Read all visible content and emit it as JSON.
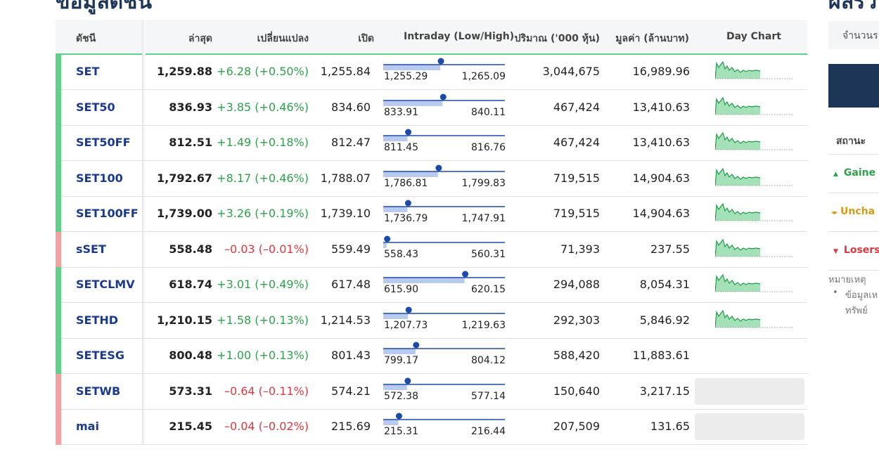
{
  "left_title": "ข้อมูลดัชนี",
  "right_title": "ผลรว",
  "table": {
    "headers": [
      "ดัชนี",
      "ล่าสุด",
      "เปลี่ยนแปลง",
      "เปิด",
      "Intraday (Low/High)",
      "ปริมาณ ('000 หุ้น)",
      "มูลค่า (ล้านบาท)",
      "Day Chart"
    ],
    "rows": [
      {
        "name": "SET",
        "last": "1,259.88",
        "change": "+6.28 (+0.50%)",
        "open": "1,255.84",
        "low": "1,255.29",
        "high": "1,265.09",
        "volume": "3,044,675",
        "value": "16,989.96",
        "color": "#2ea24a",
        "stripe_color": "#5fd08a",
        "day_chart": "sparkline"
      },
      {
        "name": "SET50",
        "last": "836.93",
        "change": "+3.85 (+0.46%)",
        "open": "834.60",
        "low": "833.91",
        "high": "840.11",
        "volume": "467,424",
        "value": "13,410.63",
        "color": "#2ea24a",
        "stripe_color": "#5fd08a",
        "day_chart": "sparkline"
      },
      {
        "name": "SET50FF",
        "last": "812.51",
        "change": "+1.49 (+0.18%)",
        "open": "812.47",
        "low": "811.45",
        "high": "816.76",
        "volume": "467,424",
        "value": "13,410.63",
        "color": "#2ea24a",
        "stripe_color": "#5fd08a",
        "day_chart": "sparkline"
      },
      {
        "name": "SET100",
        "last": "1,792.67",
        "change": "+8.17 (+0.46%)",
        "open": "1,788.07",
        "low": "1,786.81",
        "high": "1,799.83",
        "volume": "719,515",
        "value": "14,904.63",
        "color": "#2ea24a",
        "stripe_color": "#5fd08a",
        "day_chart": "sparkline"
      },
      {
        "name": "SET100FF",
        "last": "1,739.00",
        "change": "+3.26 (+0.19%)",
        "open": "1,739.10",
        "low": "1,736.79",
        "high": "1,747.91",
        "volume": "719,515",
        "value": "14,904.63",
        "color": "#2ea24a",
        "stripe_color": "#5fd08a",
        "day_chart": "sparkline"
      },
      {
        "name": "sSET",
        "last": "558.48",
        "change": "–0.03 (–0.01%)",
        "open": "559.49",
        "low": "558.43",
        "high": "560.31",
        "volume": "71,393",
        "value": "237.55",
        "color": "#e0383e",
        "stripe_color": "#f4a0a0",
        "day_chart": "sparkline"
      },
      {
        "name": "SETCLMV",
        "last": "618.74",
        "change": "+3.01 (+0.49%)",
        "open": "617.48",
        "low": "615.90",
        "high": "620.15",
        "volume": "294,088",
        "value": "8,054.31",
        "color": "#2ea24a",
        "stripe_color": "#5fd08a",
        "day_chart": "sparkline"
      },
      {
        "name": "SETHD",
        "last": "1,210.15",
        "change": "+1.58 (+0.13%)",
        "open": "1,214.53",
        "low": "1,207.73",
        "high": "1,219.63",
        "volume": "292,303",
        "value": "5,846.92",
        "color": "#2ea24a",
        "stripe_color": "#5fd08a",
        "day_chart": "sparkline"
      },
      {
        "name": "SETESG",
        "last": "800.48",
        "change": "+1.00 (+0.13%)",
        "open": "801.43",
        "low": "799.17",
        "high": "804.12",
        "volume": "588,420",
        "value": "11,883.61",
        "color": "#2ea24a",
        "stripe_color": "#5fd08a",
        "day_chart": "none"
      },
      {
        "name": "SETWB",
        "last": "573.31",
        "change": "–0.64 (–0.11%)",
        "open": "574.21",
        "low": "572.38",
        "high": "577.14",
        "volume": "150,640",
        "value": "3,217.15",
        "color": "#e0383e",
        "stripe_color": "#f4a0a0",
        "day_chart": "placeholder"
      },
      {
        "name": "mai",
        "last": "215.45",
        "change": "–0.04 (–0.02%)",
        "open": "215.69",
        "low": "215.31",
        "high": "216.44",
        "volume": "207,509",
        "value": "131.65",
        "color": "#e0383e",
        "stripe_color": "#f4a0a0",
        "day_chart": "placeholder"
      }
    ]
  },
  "side": {
    "filter": "จำนวนร",
    "status_header": "สถานะ",
    "gainers": "Gaine",
    "unchanged": "Uncha",
    "losers": "Losers",
    "note_title": "หมายเหตุ",
    "note_lines": [
      "ข้อมูลเห",
      "ทรัพย์"
    ]
  }
}
